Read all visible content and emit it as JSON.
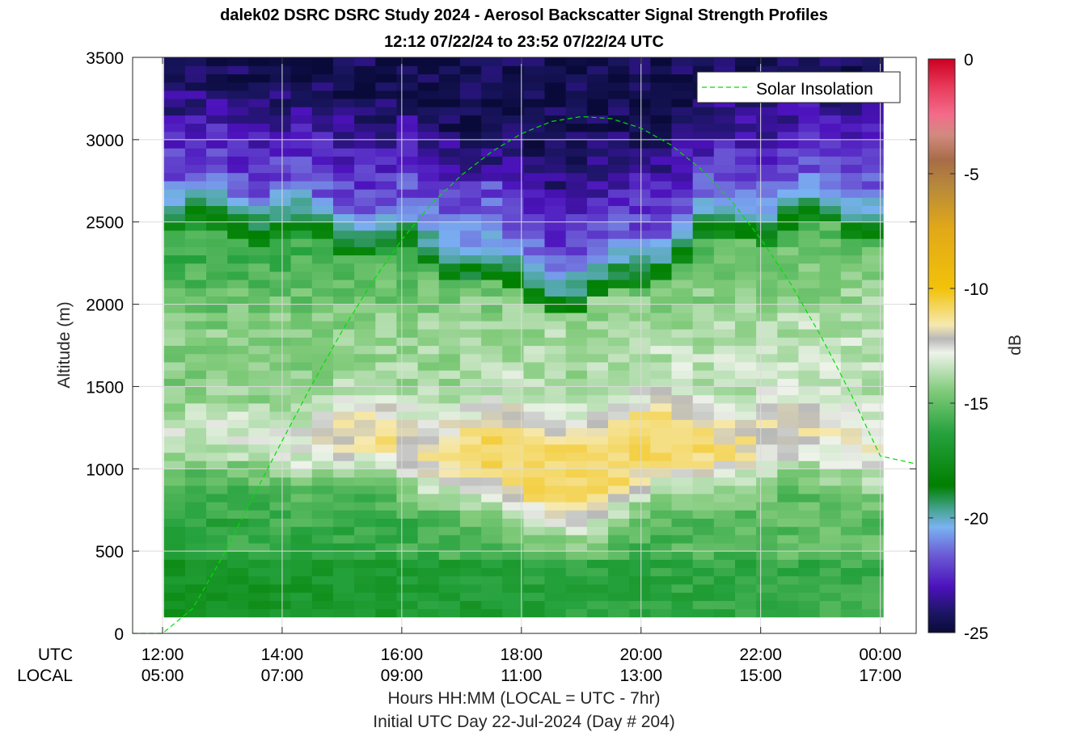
{
  "title": "dalek02 DSRC DSRC Study 2024 - Aerosol Backscatter Signal Strength Profiles",
  "subtitle": "12:12 07/22/24 to 23:52 07/22/24  UTC",
  "legend_label": "Solar Insolation",
  "colorbar": {
    "label": "dB",
    "ticks": [
      "0",
      "-5",
      "-10",
      "-15",
      "-20",
      "-25"
    ]
  },
  "axes": {
    "ylabel": "Altitude (m)",
    "yticks": [
      "0",
      "500",
      "1000",
      "1500",
      "2000",
      "2500",
      "3000",
      "3500"
    ],
    "xtick_row_utc": "UTC",
    "xtick_row_local": "LOCAL",
    "xticks_utc": [
      "12:00",
      "14:00",
      "16:00",
      "18:00",
      "20:00",
      "22:00",
      "00:00"
    ],
    "xticks_local": [
      "05:00",
      "07:00",
      "09:00",
      "11:00",
      "13:00",
      "15:00",
      "17:00"
    ],
    "xlabel": "Hours HH:MM  (LOCAL = UTC - 7hr)",
    "xlabel2": "Initial UTC Day 22-Jul-2024 (Day # 204)"
  },
  "chart_data": {
    "type": "heatmap",
    "title": "dalek02 DSRC DSRC Study 2024 - Aerosol Backscatter Signal Strength Profiles",
    "subtitle": "12:12 07/22/24 to 23:52 07/22/24  UTC",
    "x_unit": "UTC hours",
    "xlim": [
      11.5,
      24.6
    ],
    "ylim": [
      0,
      3500
    ],
    "clim": [
      -25,
      0
    ],
    "zlabel": "dB",
    "grid": true,
    "legend_position": "top-right",
    "profiles_start_utc": 12.2,
    "profiles_end_utc": 23.87,
    "profiles_count": 34,
    "altitude_min": 100,
    "altitude_max": 3500,
    "altitude_bin": 50,
    "layers": [
      {
        "name": "surface",
        "top_m": 400,
        "dB_approx": -17
      },
      {
        "name": "aerosol layer",
        "altitude_range_m": [
          650,
          1350
        ],
        "dB_approx": -10.5
      },
      {
        "name": "mixed layer",
        "altitude_range_m": [
          1350,
          2100
        ],
        "dB_approx": -14
      },
      {
        "name": "boundary layer top",
        "altitude_m": [
          1900,
          2650
        ],
        "dB_approx": -19
      }
    ],
    "series": [
      {
        "name": "Solar Insolation",
        "style": "dashed",
        "color": "#00e000",
        "x": [
          11.5,
          12.0,
          12.5,
          13.0,
          13.5,
          14.0,
          14.5,
          15.0,
          15.5,
          16.0,
          16.5,
          17.0,
          17.5,
          18.0,
          18.5,
          19.0,
          19.5,
          20.0,
          20.5,
          21.0,
          21.5,
          22.0,
          22.5,
          23.0,
          23.5,
          24.0,
          24.6
        ],
        "y": [
          0,
          0,
          150,
          464,
          818,
          1170,
          1513,
          1836,
          2132,
          2392,
          2612,
          2785,
          2926,
          3036,
          3110,
          3140,
          3128,
          3070,
          2968,
          2822,
          2632,
          2398,
          2125,
          1812,
          1462,
          1078,
          1030
        ]
      }
    ],
    "colormap": [
      {
        "dB": 0,
        "color": "#cc0022"
      },
      {
        "dB": -1.2,
        "color": "#e83a5a"
      },
      {
        "dB": -2.4,
        "color": "#f46a8a"
      },
      {
        "dB": -3.3,
        "color": "#d28a80"
      },
      {
        "dB": -4.4,
        "color": "#a86c48"
      },
      {
        "dB": -5.6,
        "color": "#b88a3a"
      },
      {
        "dB": -7.4,
        "color": "#e2a818"
      },
      {
        "dB": -10,
        "color": "#f2c20a"
      },
      {
        "dB": -11.6,
        "color": "#f6e9b0"
      },
      {
        "dB": -12.2,
        "color": "#b8b8b8"
      },
      {
        "dB": -12.8,
        "color": "#eef3ea"
      },
      {
        "dB": -14.5,
        "color": "#7fca79"
      },
      {
        "dB": -16.3,
        "color": "#26a23e"
      },
      {
        "dB": -18.6,
        "color": "#007f00"
      },
      {
        "dB": -19.7,
        "color": "#4aa69a"
      },
      {
        "dB": -20.4,
        "color": "#7ab2f2"
      },
      {
        "dB": -21.6,
        "color": "#6c5cd6"
      },
      {
        "dB": -23.0,
        "color": "#4c12bc"
      },
      {
        "dB": -24.2,
        "color": "#1a1560"
      },
      {
        "dB": -25,
        "color": "#0a0a3a"
      }
    ]
  }
}
